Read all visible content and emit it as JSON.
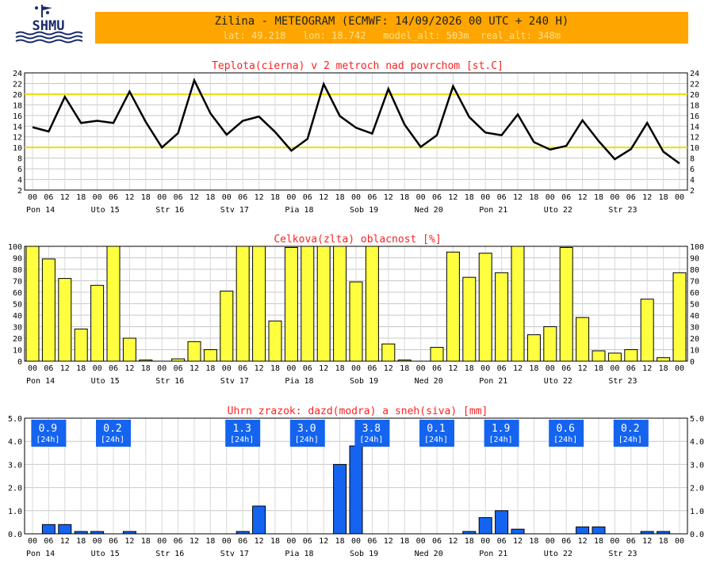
{
  "header": {
    "logo_text": "SHMU",
    "title": "Zilina - METEOGRAM (ECMWF: 14/09/2026 00 UTC + 240 H)",
    "meta": "lat: 49.218   lon: 18.742   model_alt: 503m  real_alt: 348m"
  },
  "colors": {
    "header_bg": "#ffa500",
    "title_red": "#ff2020",
    "temp_line": "#000000",
    "threshold": "#e8e000",
    "cloud_bar": "#ffff40",
    "precip_bar": "#1464f0"
  },
  "x_hour_labels": [
    "00",
    "06",
    "12",
    "18",
    "00",
    "06",
    "12",
    "18",
    "00",
    "06",
    "12",
    "18",
    "00",
    "06",
    "12",
    "18",
    "00",
    "06",
    "12",
    "18",
    "00",
    "06",
    "12",
    "18",
    "00",
    "06",
    "12",
    "18",
    "00",
    "06",
    "12",
    "18",
    "00",
    "06",
    "12",
    "18",
    "00",
    "06",
    "12",
    "18",
    "00"
  ],
  "day_labels": [
    "Pon 14",
    "Uto 15",
    "Str 16",
    "Stv 17",
    "Pia 18",
    "Sob 19",
    "Ned 20",
    "Pon 21",
    "Uto 22",
    "Str 23"
  ],
  "chart_data": [
    {
      "type": "line",
      "title": "Teplota(cierna) v 2 metroch nad povrchom [st.C]",
      "ylim": [
        2,
        24
      ],
      "yticks": [
        "2",
        "4",
        "6",
        "8",
        "10",
        "12",
        "14",
        "16",
        "18",
        "20",
        "22",
        "24"
      ],
      "reference_lines": [
        10,
        20
      ],
      "grid": true,
      "series": [
        {
          "values": [
            13.8,
            13.0,
            19.5,
            14.6,
            15.0,
            14.6,
            20.5,
            14.8,
            10.0,
            12.7,
            22.6,
            16.4,
            12.4,
            15.0,
            15.8,
            12.9,
            9.4,
            11.6,
            21.9,
            15.9,
            13.7,
            12.6,
            21.0,
            14.3,
            10.1,
            12.3,
            21.5,
            15.7,
            12.8,
            12.3,
            16.2,
            11.0,
            9.6,
            10.3,
            15.1,
            11.2,
            7.8,
            9.7,
            14.6,
            9.2,
            7.0
          ]
        }
      ]
    },
    {
      "type": "bar",
      "title": "Celkova(zlta) oblacnost [%]",
      "ylim": [
        0,
        100
      ],
      "yticks": [
        "0",
        "10",
        "20",
        "30",
        "40",
        "50",
        "60",
        "70",
        "80",
        "90",
        "100"
      ],
      "grid": true,
      "values": [
        100,
        89,
        72,
        28,
        66,
        100,
        20,
        1,
        0,
        2,
        17,
        10,
        61,
        100,
        100,
        35,
        99,
        100,
        100,
        100,
        69,
        100,
        15,
        1,
        0,
        12,
        95,
        73,
        94,
        77,
        100,
        23,
        30,
        99,
        38,
        9,
        7,
        10,
        54,
        3,
        77
      ]
    },
    {
      "type": "bar",
      "title": "Uhrn zrazok: dazd(modra) a sneh(siva) [mm]",
      "ylim": [
        0,
        5.0
      ],
      "yticks": [
        "0.0",
        "1.0",
        "2.0",
        "3.0",
        "4.0",
        "5.0"
      ],
      "grid": true,
      "daily_totals": [
        "0.9",
        "0.2",
        "",
        "1.3",
        "3.0",
        "3.8",
        "0.1",
        "1.9",
        "0.6",
        "0.2"
      ],
      "daily_suffix": "[24h]",
      "values": [
        0,
        0.4,
        0.4,
        0.1,
        0.1,
        0,
        0.1,
        0,
        0,
        0,
        0,
        0,
        0,
        0.1,
        1.2,
        0,
        0,
        0,
        0,
        3.0,
        3.8,
        0,
        0,
        0,
        0,
        0,
        0,
        0.1,
        0.7,
        1.0,
        0.2,
        0,
        0,
        0,
        0.3,
        0.3,
        0,
        0,
        0.1,
        0.1,
        0
      ]
    }
  ]
}
